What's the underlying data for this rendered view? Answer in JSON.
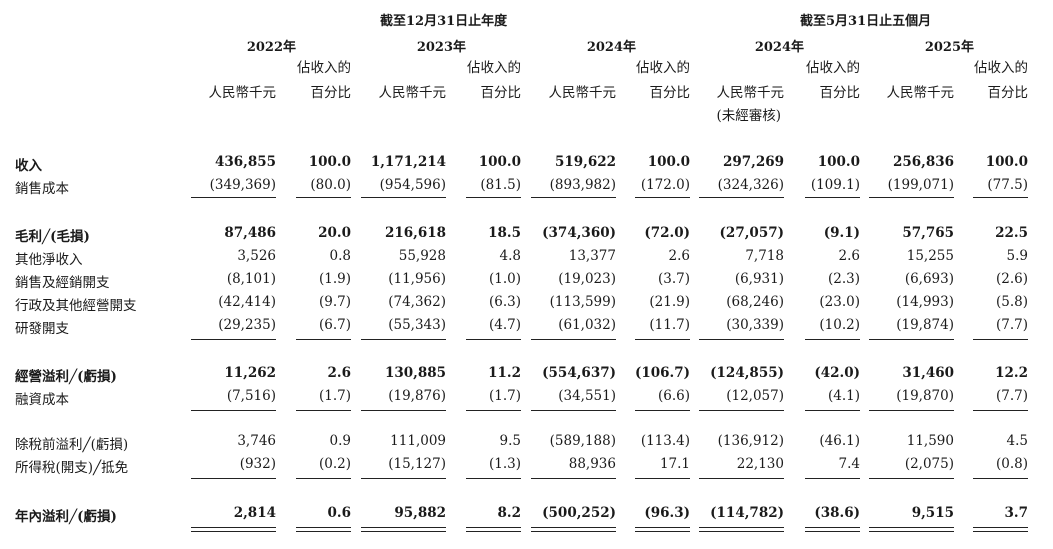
{
  "header": {
    "group_year_end": "截至12月31日止年度",
    "group_five_months": "截至5月31日止五個月",
    "periods": [
      {
        "year": "2022年",
        "currency": "人民幣千元",
        "pct_line1": "佔收入的",
        "pct_line2": "百分比",
        "note": ""
      },
      {
        "year": "2023年",
        "currency": "人民幣千元",
        "pct_line1": "佔收入的",
        "pct_line2": "百分比",
        "note": ""
      },
      {
        "year": "2024年",
        "currency": "人民幣千元",
        "pct_line1": "佔收入的",
        "pct_line2": "百分比",
        "note": ""
      },
      {
        "year": "2024年",
        "currency": "人民幣千元",
        "pct_line1": "佔收入的",
        "pct_line2": "百分比",
        "note": "(未經審核)"
      },
      {
        "year": "2025年",
        "currency": "人民幣千元",
        "pct_line1": "佔收入的",
        "pct_line2": "百分比",
        "note": ""
      }
    ]
  },
  "rows": [
    {
      "label": "收入",
      "bold": true,
      "values": [
        "436,855",
        "100.0",
        "1,171,214",
        "100.0",
        "519,622",
        "100.0",
        "297,269",
        "100.0",
        "256,836",
        "100.0"
      ]
    },
    {
      "label": "銷售成本",
      "bold": false,
      "values": [
        "(349,369)",
        "(80.0)",
        "(954,596)",
        "(81.5)",
        "(893,982)",
        "(172.0)",
        "(324,326)",
        "(109.1)",
        "(199,071)",
        "(77.5)"
      ]
    },
    {
      "label": "毛利╱(毛損)",
      "bold": true,
      "values": [
        "87,486",
        "20.0",
        "216,618",
        "18.5",
        "(374,360)",
        "(72.0)",
        "(27,057)",
        "(9.1)",
        "57,765",
        "22.5"
      ]
    },
    {
      "label": "其他淨收入",
      "bold": false,
      "values": [
        "3,526",
        "0.8",
        "55,928",
        "4.8",
        "13,377",
        "2.6",
        "7,718",
        "2.6",
        "15,255",
        "5.9"
      ]
    },
    {
      "label": "銷售及經銷開支",
      "bold": false,
      "values": [
        "(8,101)",
        "(1.9)",
        "(11,956)",
        "(1.0)",
        "(19,023)",
        "(3.7)",
        "(6,931)",
        "(2.3)",
        "(6,693)",
        "(2.6)"
      ]
    },
    {
      "label": "行政及其他經營開支",
      "bold": false,
      "values": [
        "(42,414)",
        "(9.7)",
        "(74,362)",
        "(6.3)",
        "(113,599)",
        "(21.9)",
        "(68,246)",
        "(23.0)",
        "(14,993)",
        "(5.8)"
      ]
    },
    {
      "label": "研發開支",
      "bold": false,
      "values": [
        "(29,235)",
        "(6.7)",
        "(55,343)",
        "(4.7)",
        "(61,032)",
        "(11.7)",
        "(30,339)",
        "(10.2)",
        "(19,874)",
        "(7.7)"
      ]
    },
    {
      "label": "經營溢利╱(虧損)",
      "bold": true,
      "values": [
        "11,262",
        "2.6",
        "130,885",
        "11.2",
        "(554,637)",
        "(106.7)",
        "(124,855)",
        "(42.0)",
        "31,460",
        "12.2"
      ]
    },
    {
      "label": "融資成本",
      "bold": false,
      "values": [
        "(7,516)",
        "(1.7)",
        "(19,876)",
        "(1.7)",
        "(34,551)",
        "(6.6)",
        "(12,057)",
        "(4.1)",
        "(19,870)",
        "(7.7)"
      ]
    },
    {
      "label": "除稅前溢利╱(虧損)",
      "bold": false,
      "values": [
        "3,746",
        "0.9",
        "111,009",
        "9.5",
        "(589,188)",
        "(113.4)",
        "(136,912)",
        "(46.1)",
        "11,590",
        "4.5"
      ]
    },
    {
      "label": "所得稅(開支)╱抵免",
      "bold": false,
      "values": [
        "(932)",
        "(0.2)",
        "(15,127)",
        "(1.3)",
        "88,936",
        "17.1",
        "22,130",
        "7.4",
        "(2,075)",
        "(0.8)"
      ]
    },
    {
      "label": "年內溢利╱(虧損)",
      "bold": true,
      "values": [
        "2,814",
        "0.6",
        "95,882",
        "8.2",
        "(500,252)",
        "(96.3)",
        "(114,782)",
        "(38.6)",
        "9,515",
        "3.7"
      ]
    }
  ]
}
